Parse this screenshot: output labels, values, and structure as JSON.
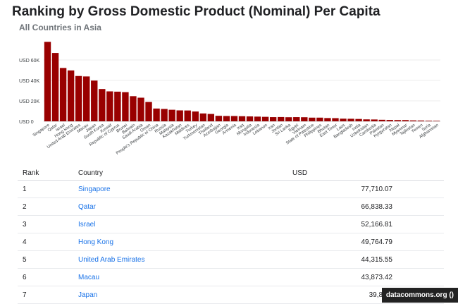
{
  "title": "Ranking by Gross Domestic Product (Nominal) Per Capita",
  "subtitle": "All Countries in Asia",
  "chart_data": {
    "type": "bar",
    "categories": [
      "Singapore",
      "Qatar",
      "Israel",
      "Hong Kong",
      "United Arab Emirates",
      "Macau",
      "Japan",
      "South Korea",
      "Kuwait",
      "Republic of Cyprus",
      "Brunei",
      "Bahrain",
      "Saudi Arabia",
      "Oman",
      "People's Republic of China",
      "Russia",
      "Malaysia",
      "Kazakhstan",
      "Maldives",
      "Turkey",
      "Turkmenistan",
      "Thailand",
      "Azerbaijan",
      "Georgia",
      "Armenia",
      "Iraq",
      "Mongolia",
      "Indonesia",
      "Lebanon",
      "Iran",
      "Jordan",
      "Sri Lanka",
      "Egypt",
      "Vietnam",
      "State of Palestine",
      "Philippines",
      "Bhutan",
      "East Timor",
      "Laos",
      "Bangladesh",
      "India",
      "Uzbekistan",
      "Cambodia",
      "Pakistan",
      "Kyrgyzstan",
      "Nepal",
      "Myanmar",
      "Tajikistan",
      "Yemen",
      "Syria",
      "Afghanistan"
    ],
    "values": [
      77710.07,
      66838.33,
      52166.81,
      49764.79,
      44315.55,
      43873.42,
      39827,
      31600,
      29300,
      29000,
      28500,
      24600,
      23100,
      18900,
      12500,
      12100,
      11300,
      10700,
      10600,
      9600,
      7700,
      7200,
      5400,
      5200,
      5200,
      5000,
      4800,
      4600,
      4400,
      4100,
      4200,
      4000,
      4100,
      4000,
      3600,
      3600,
      3200,
      3100,
      2600,
      2500,
      2300,
      1900,
      1800,
      1500,
      1300,
      1200,
      1200,
      900,
      800,
      600,
      500
    ],
    "ylabel": "USD",
    "ylim": [
      0,
      80000
    ],
    "yticks": [
      "USD 0",
      "USD 20K",
      "USD 40K",
      "USD 60K"
    ],
    "ytick_values": [
      0,
      20000,
      40000,
      60000
    ],
    "grid": true,
    "bar_color": "#990000"
  },
  "table": {
    "headers": [
      "Rank",
      "Country",
      "USD"
    ],
    "rows": [
      {
        "rank": "1",
        "country": "Singapore",
        "value": "77,710.07"
      },
      {
        "rank": "2",
        "country": "Qatar",
        "value": "66,838.33"
      },
      {
        "rank": "3",
        "country": "Israel",
        "value": "52,166.81"
      },
      {
        "rank": "4",
        "country": "Hong Kong",
        "value": "49,764.79"
      },
      {
        "rank": "5",
        "country": "United Arab Emirates",
        "value": "44,315.55"
      },
      {
        "rank": "6",
        "country": "Macau",
        "value": "43,873.42"
      },
      {
        "rank": "7",
        "country": "Japan",
        "value": "39,827."
      }
    ]
  },
  "footer": {
    "source": "datacommons.org ()"
  }
}
